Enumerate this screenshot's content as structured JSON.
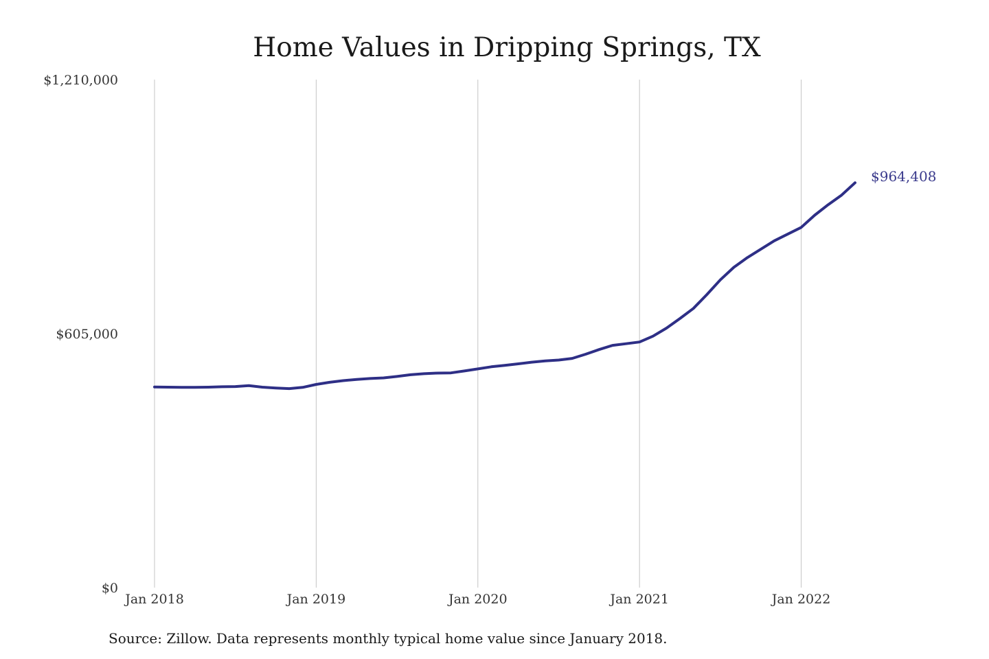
{
  "chart_data": {
    "type": "line",
    "title": "Home Values in Dripping Springs, TX",
    "source": "Source: Zillow. Data represents monthly typical home value since January 2018.",
    "xlabel": "",
    "ylabel": "",
    "ylim": [
      0,
      1210000
    ],
    "yticks": [
      {
        "value": 0,
        "label": "$0"
      },
      {
        "value": 605000,
        "label": "$605,000"
      },
      {
        "value": 1210000,
        "label": "$1,210,000"
      }
    ],
    "xlim": [
      "2018-01",
      "2022-05"
    ],
    "xticks": [
      {
        "value": "2018-01",
        "label": "Jan 2018"
      },
      {
        "value": "2019-01",
        "label": "Jan 2019"
      },
      {
        "value": "2020-01",
        "label": "Jan 2020"
      },
      {
        "value": "2021-01",
        "label": "Jan 2021"
      },
      {
        "value": "2022-01",
        "label": "Jan 2022"
      }
    ],
    "grid": {
      "vertical": true,
      "horizontal": false
    },
    "line_color": "#2e2f86",
    "end_label": {
      "text": "$964,408",
      "color": "#3a3a8c"
    },
    "x": [
      "2018-01",
      "2018-02",
      "2018-03",
      "2018-04",
      "2018-05",
      "2018-06",
      "2018-07",
      "2018-08",
      "2018-09",
      "2018-10",
      "2018-11",
      "2018-12",
      "2019-01",
      "2019-02",
      "2019-03",
      "2019-04",
      "2019-05",
      "2019-06",
      "2019-07",
      "2019-08",
      "2019-09",
      "2019-10",
      "2019-11",
      "2019-12",
      "2020-01",
      "2020-02",
      "2020-03",
      "2020-04",
      "2020-05",
      "2020-06",
      "2020-07",
      "2020-08",
      "2020-09",
      "2020-10",
      "2020-11",
      "2020-12",
      "2021-01",
      "2021-02",
      "2021-03",
      "2021-04",
      "2021-05",
      "2021-06",
      "2021-07",
      "2021-08",
      "2021-09",
      "2021-10",
      "2021-11",
      "2021-12",
      "2022-01",
      "2022-02",
      "2022-03",
      "2022-04",
      "2022-05"
    ],
    "series": [
      {
        "values": [
          478000,
          477500,
          477000,
          477000,
          477500,
          478500,
          479000,
          481000,
          477500,
          475500,
          474000,
          477000,
          484000,
          489000,
          493000,
          496000,
          498000,
          499500,
          503000,
          507000,
          509500,
          511000,
          511500,
          516000,
          521000,
          526000,
          529500,
          533000,
          537000,
          540000,
          542000,
          546000,
          556000,
          567000,
          577000,
          581000,
          585000,
          599000,
          618000,
          641000,
          665000,
          698000,
          733000,
          763000,
          786000,
          806000,
          826000,
          842000,
          858000,
          887000,
          912000,
          935000,
          964408
        ]
      }
    ]
  }
}
